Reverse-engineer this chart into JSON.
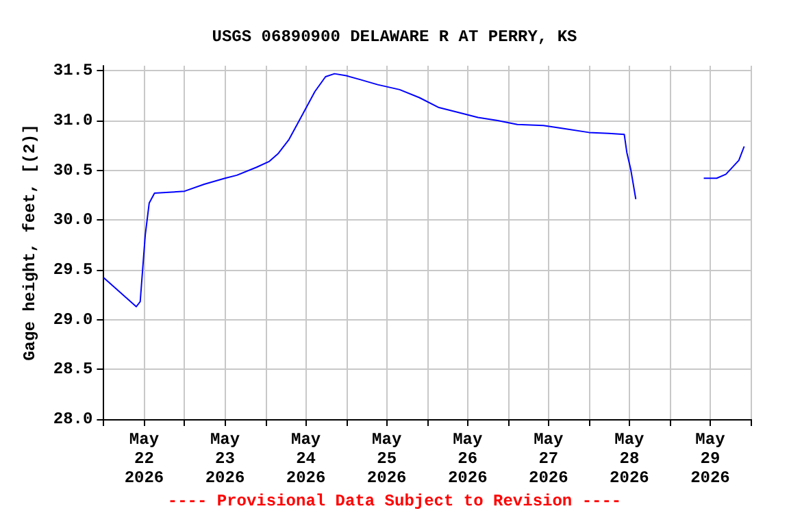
{
  "chart_data": {
    "type": "line",
    "title": "USGS 06890900 DELAWARE R AT PERRY, KS",
    "ylabel": "Gage height, feet, [(2)]",
    "annotations": [
      "---- Provisional Data Subject to Revision ----"
    ],
    "x": [
      "2026-05-22T00:00",
      "2026-05-22T09:40",
      "2026-05-22T10:50",
      "2026-05-22T12:20",
      "2026-05-22T13:30",
      "2026-05-22T15:05",
      "2026-05-22T20:10",
      "2026-05-23T00:00",
      "2026-05-23T05:50",
      "2026-05-23T12:00",
      "2026-05-23T15:30",
      "2026-05-23T21:20",
      "2026-05-24T01:10",
      "2026-05-24T03:50",
      "2026-05-24T07:00",
      "2026-05-24T10:50",
      "2026-05-24T14:40",
      "2026-05-24T17:50",
      "2026-05-24T20:30",
      "2026-05-25T00:00",
      "2026-05-25T04:15",
      "2026-05-25T09:20",
      "2026-05-25T15:50",
      "2026-05-25T21:40",
      "2026-05-26T03:30",
      "2026-05-26T09:20",
      "2026-05-26T15:05",
      "2026-05-26T20:55",
      "2026-05-27T02:45",
      "2026-05-27T10:30",
      "2026-05-27T16:15",
      "2026-05-28T00:00",
      "2026-05-28T05:50",
      "2026-05-28T10:30",
      "2026-05-28T11:15",
      "2026-05-28T12:25",
      "2026-05-28T13:55",
      "2026-05-28T22:00",
      "2026-05-29T10:05",
      "2026-05-29T13:55",
      "2026-05-29T16:40",
      "2026-05-29T20:30",
      "2026-05-29T22:05"
    ],
    "series": [
      {
        "color": "#0000ff",
        "values": [
          29.42,
          29.13,
          29.18,
          29.85,
          30.17,
          30.27,
          30.28,
          30.29,
          30.36,
          30.42,
          30.45,
          30.53,
          30.59,
          30.67,
          30.81,
          31.05,
          31.29,
          31.44,
          31.47,
          31.45,
          31.41,
          31.36,
          31.31,
          31.23,
          31.13,
          31.08,
          31.03,
          31.0,
          30.96,
          30.95,
          30.92,
          30.88,
          30.87,
          30.86,
          30.68,
          30.51,
          30.21,
          null,
          30.42,
          30.42,
          30.46,
          30.6,
          30.74
        ]
      }
    ],
    "xlim": [
      "2026-05-22T00:00",
      "2026-05-30T00:00"
    ],
    "xticks": [
      {
        "value": "2026-05-22T00:00",
        "label": null
      },
      {
        "value": "2026-05-22T12:00",
        "label": "May\n22\n2026"
      },
      {
        "value": "2026-05-23T00:00",
        "label": null
      },
      {
        "value": "2026-05-23T12:00",
        "label": "May\n23\n2026"
      },
      {
        "value": "2026-05-24T00:00",
        "label": null
      },
      {
        "value": "2026-05-24T12:00",
        "label": "May\n24\n2026"
      },
      {
        "value": "2026-05-25T00:00",
        "label": null
      },
      {
        "value": "2026-05-25T12:00",
        "label": "May\n25\n2026"
      },
      {
        "value": "2026-05-26T00:00",
        "label": null
      },
      {
        "value": "2026-05-26T12:00",
        "label": "May\n26\n2026"
      },
      {
        "value": "2026-05-27T00:00",
        "label": null
      },
      {
        "value": "2026-05-27T12:00",
        "label": "May\n27\n2026"
      },
      {
        "value": "2026-05-28T00:00",
        "label": null
      },
      {
        "value": "2026-05-28T12:00",
        "label": "May\n28\n2026"
      },
      {
        "value": "2026-05-29T00:00",
        "label": null
      },
      {
        "value": "2026-05-29T12:00",
        "label": "May\n29\n2026"
      },
      {
        "value": "2026-05-30T00:00",
        "label": null
      }
    ],
    "ylim": [
      28.0,
      31.55
    ],
    "yticks": [
      {
        "value": 28.0,
        "label": "28.0"
      },
      {
        "value": 28.5,
        "label": "28.5"
      },
      {
        "value": 29.0,
        "label": "29.0"
      },
      {
        "value": 29.5,
        "label": "29.5"
      },
      {
        "value": 30.0,
        "label": "30.0"
      },
      {
        "value": 30.5,
        "label": "30.5"
      },
      {
        "value": 31.0,
        "label": "31.0"
      },
      {
        "value": 31.5,
        "label": "31.5"
      }
    ],
    "grid": true,
    "marker": "none",
    "line_style": "solid"
  }
}
